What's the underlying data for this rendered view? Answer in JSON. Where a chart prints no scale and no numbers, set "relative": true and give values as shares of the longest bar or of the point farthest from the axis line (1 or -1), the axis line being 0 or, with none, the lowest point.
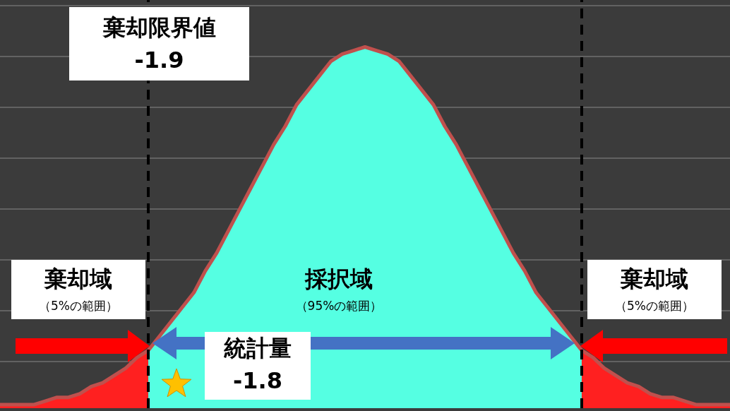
{
  "chart_data": {
    "type": "area",
    "relative": true,
    "grid": "y",
    "tick_labels": false,
    "categories": [
      null,
      null,
      null,
      null,
      null,
      null,
      null,
      null,
      null,
      null,
      null,
      null,
      null,
      null,
      null,
      null,
      null,
      null,
      null,
      null,
      null,
      null,
      null,
      null,
      null,
      null,
      null,
      null,
      null,
      null,
      null,
      null,
      null,
      null,
      null,
      null,
      null,
      null,
      null,
      null,
      null,
      null,
      null,
      null,
      null,
      null,
      null,
      null,
      null,
      null,
      null,
      null,
      null,
      null,
      null,
      null,
      null,
      null,
      null,
      null,
      null,
      null,
      null,
      null,
      null
    ],
    "series": [
      {
        "color": "#ff2020",
        "values": [
          0.01,
          0.01,
          0.01,
          0.01,
          0.02,
          0.03,
          0.03,
          0.04,
          0.06,
          0.07,
          0.09,
          0.11,
          0.14,
          0.16,
          null,
          null,
          null,
          null,
          null,
          null,
          null,
          null,
          null,
          null,
          null,
          null,
          null,
          null,
          null,
          null,
          null,
          null,
          null,
          null,
          null,
          null,
          null,
          null,
          null,
          null,
          null,
          null,
          null,
          null,
          null,
          null,
          null,
          null,
          null,
          null,
          null,
          null,
          null,
          null,
          null,
          null,
          null,
          null,
          null,
          null,
          null,
          null,
          null,
          null,
          null
        ]
      },
      {
        "color": "#55ffe2",
        "values": [
          null,
          null,
          null,
          null,
          null,
          null,
          null,
          null,
          null,
          null,
          null,
          null,
          null,
          0.16,
          0.2,
          0.24,
          0.28,
          0.32,
          0.38,
          0.43,
          0.49,
          0.55,
          0.61,
          0.67,
          0.73,
          0.78,
          0.84,
          0.88,
          0.92,
          0.96,
          0.98,
          0.99,
          1,
          0.99,
          0.98,
          0.96,
          0.92,
          0.88,
          0.84,
          0.78,
          0.73,
          0.67,
          0.61,
          0.55,
          0.49,
          0.43,
          0.38,
          0.32,
          0.28,
          0.24,
          0.2,
          0.16,
          null,
          null,
          null,
          null,
          null,
          null,
          null,
          null,
          null,
          null,
          null,
          null,
          null
        ]
      },
      {
        "color": "#ff2020",
        "values": [
          null,
          null,
          null,
          null,
          null,
          null,
          null,
          null,
          null,
          null,
          null,
          null,
          null,
          null,
          null,
          null,
          null,
          null,
          null,
          null,
          null,
          null,
          null,
          null,
          null,
          null,
          null,
          null,
          null,
          null,
          null,
          null,
          null,
          null,
          null,
          null,
          null,
          null,
          null,
          null,
          null,
          null,
          null,
          null,
          null,
          null,
          null,
          null,
          null,
          null,
          null,
          0.16,
          0.14,
          0.11,
          0.09,
          0.07,
          0.06,
          0.04,
          0.03,
          0.03,
          0.02,
          0.01,
          0.01,
          0.01,
          0.01
        ]
      },
      {
        "type": "line",
        "color": "#c0504d",
        "values": [
          0.01,
          0.01,
          0.01,
          0.01,
          0.02,
          0.03,
          0.03,
          0.04,
          0.06,
          0.07,
          0.09,
          0.11,
          0.14,
          0.16,
          0.2,
          0.24,
          0.28,
          0.32,
          0.38,
          0.43,
          0.49,
          0.55,
          0.61,
          0.67,
          0.73,
          0.78,
          0.84,
          0.88,
          0.92,
          0.96,
          0.98,
          0.99,
          1,
          0.99,
          0.98,
          0.96,
          0.92,
          0.88,
          0.84,
          0.78,
          0.73,
          0.67,
          0.61,
          0.55,
          0.49,
          0.43,
          0.38,
          0.32,
          0.28,
          0.24,
          0.2,
          0.16,
          0.14,
          0.11,
          0.09,
          0.07,
          0.06,
          0.04,
          0.03,
          0.03,
          0.02,
          0.01,
          0.01,
          0.01,
          0.01
        ]
      }
    ],
    "annotations": [
      "棄却限界値\n-1.9",
      "棄却域",
      "（5%の範囲）",
      "採択域",
      "（95%の範囲）",
      "棄却域",
      "（5%の範囲）",
      "統計量\n-1.8"
    ]
  }
}
